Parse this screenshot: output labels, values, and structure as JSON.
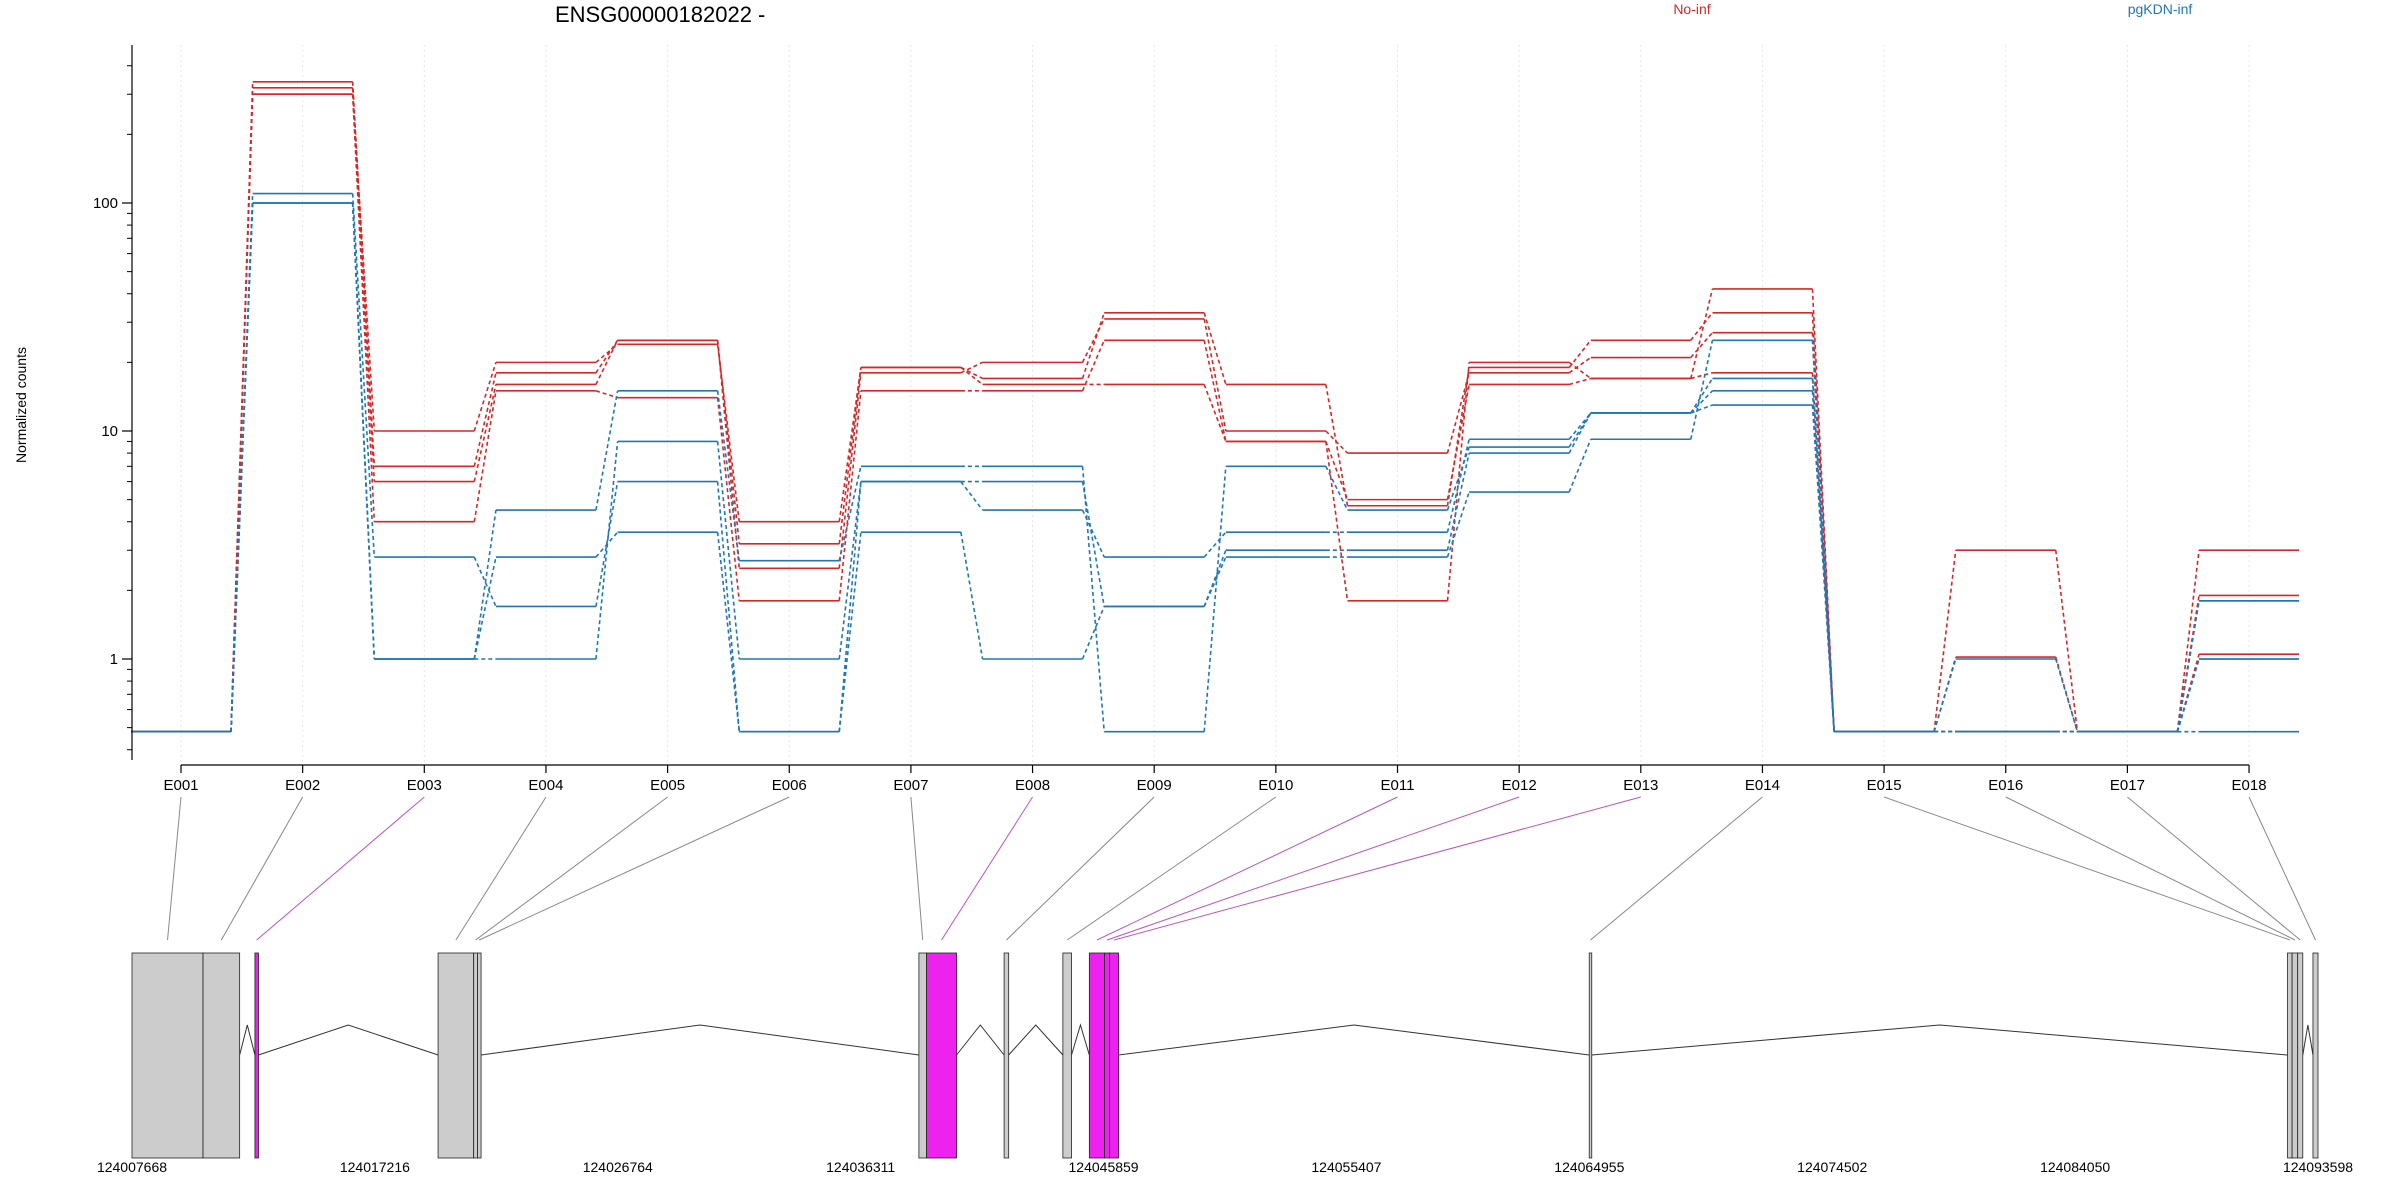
{
  "chart_data": {
    "type": "line",
    "title": "ENSG00000182022 -",
    "ylabel": "Normalized counts",
    "yscale": "log",
    "yticks": [
      1,
      10,
      100
    ],
    "ytick_labels": [
      "1",
      "10",
      "100"
    ],
    "legend": {
      "placement": "top",
      "entries": [
        "No-inf",
        "pgKDN-inf"
      ]
    },
    "exons": [
      "E001",
      "E002",
      "E003",
      "E004",
      "E005",
      "E006",
      "E007",
      "E008",
      "E009",
      "E010",
      "E011",
      "E012",
      "E013",
      "E014",
      "E015",
      "E016",
      "E017",
      "E018"
    ],
    "series": [
      {
        "group": "No-inf",
        "color": "#d62728",
        "values": [
          0.48,
          300,
          4,
          15,
          14,
          1.8,
          15,
          15,
          25,
          9,
          5,
          16,
          17,
          18,
          0.48,
          0.48,
          0.48,
          3
        ]
      },
      {
        "group": "No-inf",
        "color": "#d62728",
        "values": [
          0.48,
          320,
          6,
          16,
          25,
          2.5,
          18,
          20,
          31,
          10,
          8,
          18,
          21,
          27,
          0.48,
          1.02,
          0.48,
          1.9
        ]
      },
      {
        "group": "No-inf",
        "color": "#d62728",
        "values": [
          0.48,
          340,
          7,
          18,
          25,
          3.2,
          19,
          17,
          33,
          16,
          4.7,
          19,
          25,
          33,
          0.48,
          0.48,
          0.48,
          1.8
        ]
      },
      {
        "group": "No-inf",
        "color": "#d62728",
        "values": [
          0.48,
          300,
          10,
          20,
          24,
          4,
          19,
          16,
          16,
          9,
          1.8,
          20,
          17,
          42,
          0.48,
          3,
          0.48,
          1.05
        ]
      },
      {
        "group": "pgKDN-inf",
        "color": "#1f77b4",
        "values": [
          0.48,
          100,
          1,
          1,
          9,
          1,
          6,
          6,
          1.7,
          3,
          3,
          8,
          12,
          15,
          0.48,
          0.48,
          0.48,
          1
        ]
      },
      {
        "group": "pgKDN-inf",
        "color": "#1f77b4",
        "values": [
          0.48,
          100,
          1,
          4.5,
          15,
          2.7,
          7,
          7,
          0.48,
          7,
          4.5,
          8.5,
          12,
          17,
          0.48,
          1,
          0.48,
          1.8
        ]
      },
      {
        "group": "pgKDN-inf",
        "color": "#1f77b4",
        "values": [
          0.48,
          110,
          2.8,
          1.7,
          6,
          0.48,
          3.6,
          1,
          1.7,
          2.8,
          2.8,
          5.4,
          9.2,
          25,
          0.48,
          0.48,
          0.48,
          0.48
        ]
      },
      {
        "group": "pgKDN-inf",
        "color": "#1f77b4",
        "values": [
          0.48,
          100,
          1,
          2.8,
          3.6,
          0.48,
          6,
          4.5,
          2.8,
          3.6,
          3.6,
          9.2,
          12,
          13,
          0.48,
          0.48,
          0.48,
          1
        ]
      }
    ],
    "gene_model": {
      "coordinate_labels": [
        "124007668",
        "124017216",
        "124026764",
        "124036311",
        "124045859",
        "124055407",
        "124064955",
        "124074502",
        "124084050",
        "124093598"
      ],
      "start": 124007668,
      "end": 124093598,
      "exon_blocks": [
        {
          "exon": "E001",
          "start": 124007668,
          "end": 124010460,
          "highlighted": false
        },
        {
          "exon": "E002",
          "start": 124010460,
          "end": 124011900,
          "highlighted": false
        },
        {
          "exon": "E003",
          "start": 124012500,
          "end": 124012640,
          "highlighted": true
        },
        {
          "exon": "E004",
          "start": 124019700,
          "end": 124021100,
          "highlighted": false
        },
        {
          "exon": "E005",
          "start": 124021100,
          "end": 124021250,
          "highlighted": false
        },
        {
          "exon": "E006",
          "start": 124021250,
          "end": 124021390,
          "highlighted": false
        },
        {
          "exon": "E007",
          "start": 124038600,
          "end": 124038900,
          "highlighted": false
        },
        {
          "exon": "E008",
          "start": 124038900,
          "end": 124040080,
          "highlighted": true
        },
        {
          "exon": "E009",
          "start": 124041950,
          "end": 124042130,
          "highlighted": false
        },
        {
          "exon": "E010",
          "start": 124044260,
          "end": 124044600,
          "highlighted": false
        },
        {
          "exon": "E011",
          "start": 124045300,
          "end": 124045900,
          "highlighted": true
        },
        {
          "exon": "E012",
          "start": 124045900,
          "end": 124046100,
          "highlighted": true
        },
        {
          "exon": "E013",
          "start": 124046100,
          "end": 124046450,
          "highlighted": true
        },
        {
          "exon": "E014",
          "start": 124064950,
          "end": 124065050,
          "highlighted": false
        },
        {
          "exon": "E015",
          "start": 124092400,
          "end": 124092580,
          "highlighted": false
        },
        {
          "exon": "E016",
          "start": 124092580,
          "end": 124092800,
          "highlighted": false
        },
        {
          "exon": "E017",
          "start": 124092800,
          "end": 124093000,
          "highlighted": false
        },
        {
          "exon": "E018",
          "start": 124093400,
          "end": 124093598,
          "highlighted": false
        }
      ]
    }
  },
  "colors": {
    "no_inf": "#d62728",
    "pgkdn_inf": "#1f77b4",
    "highlight_exon": "#ee22ee",
    "exon_fill": "#cccccc",
    "connector": "#888888",
    "connector_highlight": "#bb55bb",
    "grid": "#e6e6e6"
  }
}
